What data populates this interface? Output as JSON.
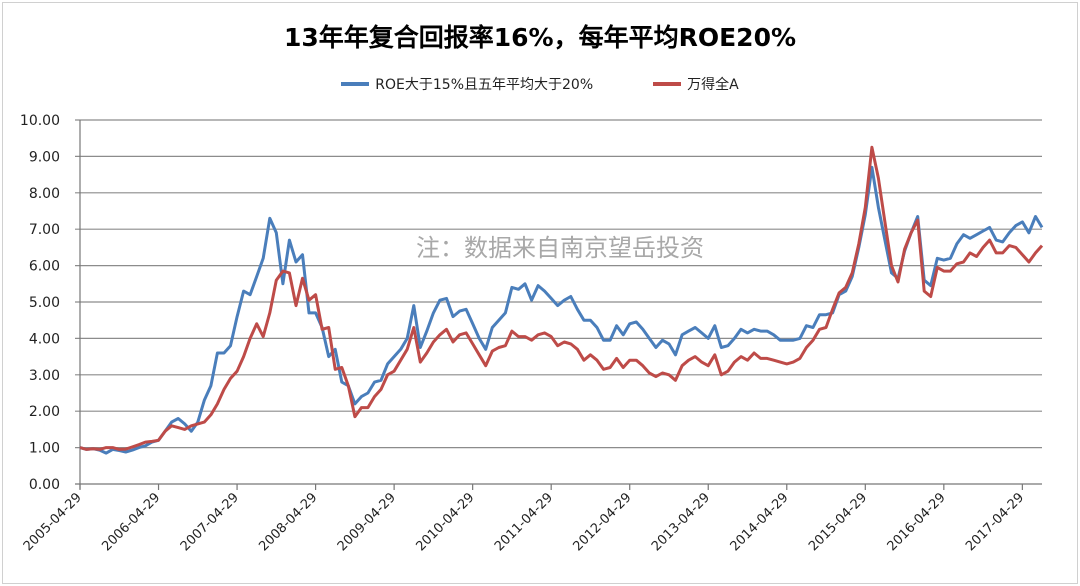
{
  "chart_data": {
    "type": "line",
    "title": "13年年复合回报率16%，每年平均ROE20%",
    "annotation": "注：数据来自南京望岳投资",
    "xlabel": "",
    "ylabel": "",
    "ylim": [
      0,
      10
    ],
    "y_ticks": [
      "0.00",
      "1.00",
      "2.00",
      "3.00",
      "4.00",
      "5.00",
      "6.00",
      "7.00",
      "8.00",
      "9.00",
      "10.00"
    ],
    "x_start": "2005-04-29",
    "x_frequency": "monthly",
    "x_tick_labels": [
      "2005-04-29",
      "2006-04-29",
      "2007-04-29",
      "2008-04-29",
      "2009-04-29",
      "2010-04-29",
      "2011-04-29",
      "2012-04-29",
      "2013-04-29",
      "2014-04-29",
      "2015-04-29",
      "2016-04-29",
      "2017-04-29"
    ],
    "grid": true,
    "legend_position": "top",
    "series": [
      {
        "name": "ROE大于15%且五年平均大于20%",
        "color": "#4a7ebb",
        "values": [
          1.0,
          0.95,
          0.97,
          0.93,
          0.85,
          0.95,
          0.92,
          0.88,
          0.93,
          1.0,
          1.05,
          1.15,
          1.2,
          1.45,
          1.7,
          1.8,
          1.65,
          1.45,
          1.7,
          2.3,
          2.7,
          3.6,
          3.6,
          3.8,
          4.6,
          5.3,
          5.2,
          5.7,
          6.2,
          7.3,
          6.9,
          5.5,
          6.7,
          6.1,
          6.3,
          4.7,
          4.7,
          4.3,
          3.5,
          3.7,
          2.8,
          2.7,
          2.2,
          2.4,
          2.5,
          2.8,
          2.85,
          3.3,
          3.5,
          3.7,
          4.0,
          4.9,
          3.75,
          4.2,
          4.7,
          5.05,
          5.1,
          4.6,
          4.75,
          4.8,
          4.4,
          4.0,
          3.7,
          4.3,
          4.5,
          4.7,
          5.4,
          5.35,
          5.5,
          5.05,
          5.45,
          5.3,
          5.1,
          4.9,
          5.05,
          5.15,
          4.8,
          4.5,
          4.5,
          4.3,
          3.95,
          3.95,
          4.35,
          4.1,
          4.4,
          4.45,
          4.25,
          4.0,
          3.75,
          3.95,
          3.85,
          3.55,
          4.1,
          4.2,
          4.3,
          4.15,
          4.0,
          4.35,
          3.75,
          3.8,
          4.0,
          4.25,
          4.15,
          4.25,
          4.2,
          4.2,
          4.1,
          3.95,
          3.95,
          3.95,
          4.0,
          4.35,
          4.3,
          4.65,
          4.65,
          4.7,
          5.2,
          5.3,
          5.7,
          6.5,
          7.4,
          8.7,
          7.6,
          6.7,
          5.8,
          5.65,
          6.4,
          6.9,
          7.35,
          5.6,
          5.45,
          6.2,
          6.15,
          6.2,
          6.6,
          6.85,
          6.75,
          6.85,
          6.95,
          7.05,
          6.7,
          6.65,
          6.9,
          7.1,
          7.2,
          6.9,
          7.35,
          7.05
        ]
      },
      {
        "name": "万得全A",
        "color": "#be4b48",
        "values": [
          1.0,
          0.95,
          0.97,
          0.95,
          1.0,
          1.0,
          0.95,
          0.96,
          1.02,
          1.08,
          1.15,
          1.17,
          1.2,
          1.45,
          1.6,
          1.55,
          1.5,
          1.6,
          1.65,
          1.7,
          1.9,
          2.2,
          2.6,
          2.9,
          3.1,
          3.5,
          4.0,
          4.4,
          4.05,
          4.7,
          5.6,
          5.85,
          5.8,
          4.9,
          5.65,
          5.05,
          5.2,
          4.25,
          4.3,
          3.15,
          3.2,
          2.7,
          1.85,
          2.1,
          2.1,
          2.4,
          2.6,
          3.0,
          3.1,
          3.4,
          3.7,
          4.3,
          3.35,
          3.6,
          3.9,
          4.1,
          4.25,
          3.9,
          4.1,
          4.15,
          3.85,
          3.55,
          3.25,
          3.65,
          3.75,
          3.8,
          4.2,
          4.05,
          4.05,
          3.95,
          4.1,
          4.15,
          4.05,
          3.8,
          3.9,
          3.85,
          3.7,
          3.4,
          3.55,
          3.4,
          3.15,
          3.2,
          3.45,
          3.2,
          3.4,
          3.4,
          3.25,
          3.05,
          2.95,
          3.05,
          3.0,
          2.85,
          3.25,
          3.4,
          3.5,
          3.35,
          3.25,
          3.55,
          3.0,
          3.1,
          3.35,
          3.5,
          3.4,
          3.6,
          3.45,
          3.45,
          3.4,
          3.35,
          3.3,
          3.35,
          3.45,
          3.75,
          3.95,
          4.25,
          4.3,
          4.8,
          5.25,
          5.4,
          5.8,
          6.6,
          7.6,
          9.25,
          8.4,
          7.2,
          6.0,
          5.55,
          6.45,
          6.9,
          7.25,
          5.3,
          5.15,
          5.95,
          5.85,
          5.85,
          6.05,
          6.1,
          6.35,
          6.25,
          6.5,
          6.7,
          6.35,
          6.35,
          6.55,
          6.5,
          6.3,
          6.1,
          6.35,
          6.55
        ]
      }
    ]
  }
}
